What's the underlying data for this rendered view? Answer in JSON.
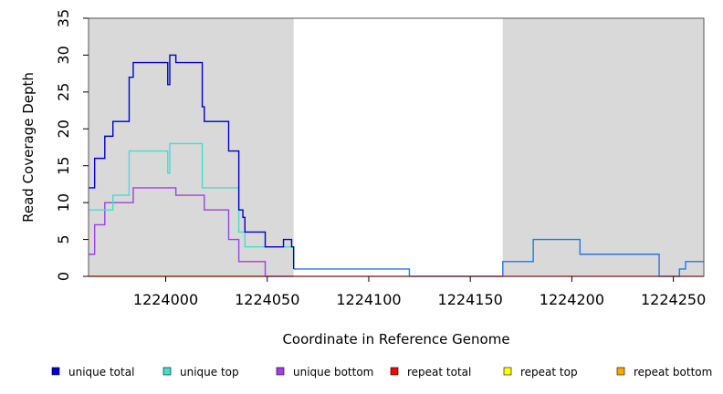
{
  "chart_data": {
    "type": "line",
    "step": true,
    "title": "",
    "xlabel": "Coordinate in Reference Genome",
    "ylabel": "Read Coverage Depth",
    "xlim": [
      1223962,
      1224265
    ],
    "ylim": [
      0,
      35
    ],
    "x_ticks": [
      1224000,
      1224050,
      1224100,
      1224150,
      1224200,
      1224250
    ],
    "y_ticks": [
      0,
      5,
      10,
      15,
      20,
      25,
      30,
      35
    ],
    "shaded_regions": [
      {
        "x0": 1223962,
        "x1": 1224063,
        "color": "#d9d9d9"
      },
      {
        "x0": 1224166,
        "x1": 1224265,
        "color": "#d9d9d9"
      }
    ],
    "legend_position": "bottom",
    "series": [
      {
        "name": "unique total",
        "color": "#0000cd",
        "points": [
          [
            1223962,
            12
          ],
          [
            1223965,
            16
          ],
          [
            1223970,
            19
          ],
          [
            1223974,
            21
          ],
          [
            1223982,
            27
          ],
          [
            1223984,
            29
          ],
          [
            1224001,
            26
          ],
          [
            1224002,
            30
          ],
          [
            1224005,
            29
          ],
          [
            1224018,
            23
          ],
          [
            1224019,
            21
          ],
          [
            1224031,
            17
          ],
          [
            1224036,
            9
          ],
          [
            1224038,
            8
          ],
          [
            1224039,
            6
          ],
          [
            1224049,
            4
          ],
          [
            1224058,
            5
          ],
          [
            1224062,
            4
          ],
          [
            1224063,
            1
          ]
        ]
      },
      {
        "name": "unique top",
        "color": "#40e0d0",
        "points": [
          [
            1223962,
            9
          ],
          [
            1223974,
            11
          ],
          [
            1223982,
            17
          ],
          [
            1224001,
            14
          ],
          [
            1224002,
            18
          ],
          [
            1224018,
            12
          ],
          [
            1224036,
            6
          ],
          [
            1224039,
            4
          ],
          [
            1224049,
            4
          ],
          [
            1224063,
            1
          ]
        ]
      },
      {
        "name": "unique bottom",
        "color": "#a040e0",
        "points": [
          [
            1223962,
            3
          ],
          [
            1223965,
            7
          ],
          [
            1223970,
            10
          ],
          [
            1223984,
            12
          ],
          [
            1224005,
            11
          ],
          [
            1224019,
            9
          ],
          [
            1224031,
            5
          ],
          [
            1224036,
            2
          ],
          [
            1224049,
            0
          ],
          [
            1224063,
            0
          ]
        ]
      },
      {
        "name": "repeat total",
        "color": "#ff0000",
        "points": [
          [
            1223962,
            0
          ],
          [
            1224265,
            0
          ]
        ]
      },
      {
        "name": "repeat top",
        "color": "#ffff00",
        "points": []
      },
      {
        "name": "repeat bottom",
        "color": "#ffa500",
        "points": [
          [
            1223962,
            0
          ],
          [
            1224063,
            0
          ]
        ]
      },
      {
        "name": "",
        "color": "#1f78e8",
        "points": [
          [
            1224063,
            1
          ],
          [
            1224120,
            0
          ],
          [
            1224166,
            2
          ],
          [
            1224181,
            5
          ],
          [
            1224204,
            3
          ],
          [
            1224243,
            0
          ],
          [
            1224253,
            1
          ],
          [
            1224256,
            2
          ],
          [
            1224265,
            2
          ]
        ]
      }
    ]
  }
}
